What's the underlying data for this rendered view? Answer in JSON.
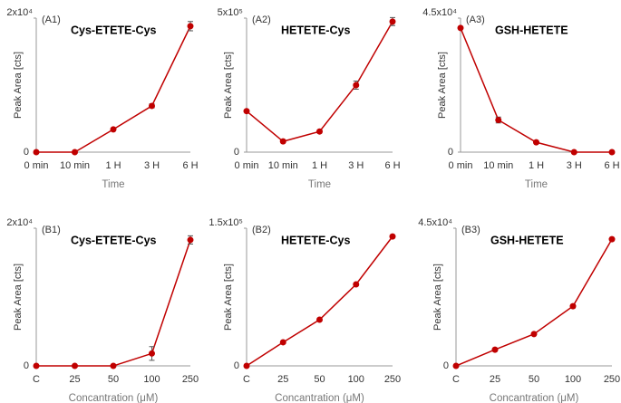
{
  "chart_data": [
    {
      "type": "line",
      "panel_label": "(A1)",
      "title": "Cys-ETETE-Cys",
      "y_label": "Peak Area [cts]",
      "x_label": "Time",
      "categories": [
        "0 min",
        "10 min",
        "1 H",
        "3 H",
        "6 H"
      ],
      "values": [
        0,
        0,
        3400,
        6900,
        18800
      ],
      "errors": [
        0,
        0,
        150,
        300,
        700
      ],
      "color": "#c00000",
      "ylim": [
        0,
        20000
      ],
      "yticks": [
        0,
        {
          "value": 20000,
          "label": "2x10⁴"
        }
      ]
    },
    {
      "type": "line",
      "panel_label": "(A2)",
      "title": "HETETE-Cys",
      "y_label": "Peak Area [cts]",
      "x_label": "Time",
      "categories": [
        "0 min",
        "10 min",
        "1 H",
        "3 H",
        "6 H"
      ],
      "values": [
        153000,
        40000,
        77000,
        250000,
        487000
      ],
      "errors": [
        0,
        0,
        5000,
        15000,
        15000
      ],
      "color": "#c00000",
      "ylim": [
        0,
        500000
      ],
      "yticks": [
        0,
        {
          "value": 500000,
          "label": "5x10⁵"
        }
      ]
    },
    {
      "type": "line",
      "panel_label": "(A3)",
      "title": "GSH-HETETE",
      "y_label": "Peak Area [cts]",
      "x_label": "Time",
      "categories": [
        "0 min",
        "10 min",
        "1 H",
        "3 H",
        "6 H"
      ],
      "values": [
        41700,
        10800,
        3300,
        0,
        0
      ],
      "errors": [
        0,
        1000,
        300,
        0,
        0
      ],
      "color": "#c00000",
      "ylim": [
        0,
        45000
      ],
      "yticks": [
        0,
        {
          "value": 45000,
          "label": "4.5x10⁴"
        }
      ]
    },
    {
      "type": "line",
      "panel_label": "(B1)",
      "title": "Cys-ETETE-Cys",
      "y_label": "Peak Area [cts]",
      "x_label": "Concantration (μM)",
      "categories": [
        "C",
        "25",
        "50",
        "100",
        "250"
      ],
      "values": [
        0,
        0,
        0,
        1800,
        18300
      ],
      "errors": [
        0,
        0,
        0,
        1000,
        600
      ],
      "color": "#c00000",
      "ylim": [
        0,
        20000
      ],
      "yticks": [
        0,
        {
          "value": 20000,
          "label": "2x10⁴"
        }
      ]
    },
    {
      "type": "line",
      "panel_label": "(B2)",
      "title": "HETETE-Cys",
      "y_label": "Peak Area [cts]",
      "x_label": "Concantration (μM)",
      "categories": [
        "C",
        "25",
        "50",
        "100",
        "250"
      ],
      "values": [
        0,
        25700,
        50300,
        88800,
        141000
      ],
      "errors": [
        0,
        0,
        0,
        0,
        0
      ],
      "color": "#c00000",
      "ylim": [
        0,
        150000
      ],
      "yticks": [
        0,
        {
          "value": 150000,
          "label": "1.5x10⁵"
        }
      ]
    },
    {
      "type": "line",
      "panel_label": "(B3)",
      "title": "GSH-HETETE",
      "y_label": "Peak Area [cts]",
      "x_label": "Concantration (μM)",
      "categories": [
        "C",
        "25",
        "50",
        "100",
        "250"
      ],
      "values": [
        0,
        5300,
        10400,
        19500,
        41400
      ],
      "errors": [
        0,
        0,
        0,
        500,
        0
      ],
      "color": "#c00000",
      "ylim": [
        0,
        45000
      ],
      "yticks": [
        0,
        {
          "value": 45000,
          "label": "4.5x10⁴"
        }
      ]
    }
  ]
}
